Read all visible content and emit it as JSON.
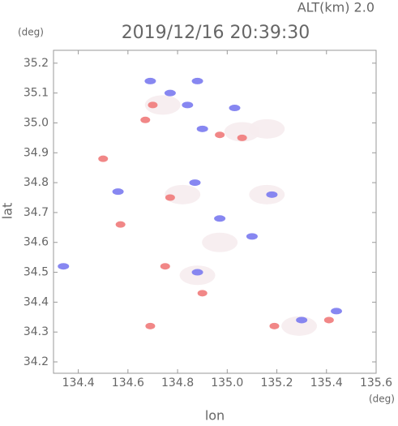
{
  "chart_data": {
    "type": "scatter",
    "title": "2019/12/16 20:39:30",
    "subtitle": "ALT(km) 2.0",
    "x_label": "lon",
    "y_label": "lat",
    "x_unit": "(deg)",
    "y_unit": "(deg)",
    "xlim": [
      134.3,
      135.6
    ],
    "ylim": [
      34.162,
      35.243
    ],
    "xticks": [
      134.4,
      134.6,
      134.8,
      {
        "value": 135,
        "label": "135.0"
      },
      135.2,
      135.4,
      135.6
    ],
    "yticks": [
      34.2,
      34.3,
      34.4,
      34.5,
      34.6,
      34.7,
      34.8,
      34.9,
      {
        "value": 35,
        "label": "35.0"
      },
      35.1,
      35.2
    ],
    "series": [
      {
        "color": "#f6ecee",
        "x": [
          135.29,
          134.82,
          134.97,
          134.88,
          135.06,
          134.74,
          135.16,
          135.16
        ],
        "values": [
          34.32,
          34.76,
          34.6,
          34.49,
          34.97,
          35.06,
          34.76,
          34.98
        ]
      },
      {
        "color": "#f07a7a",
        "x": [
          134.5,
          134.67,
          134.7,
          134.97,
          135.06,
          135.19,
          135.41,
          134.77,
          134.75,
          134.9,
          134.69,
          134.57
        ],
        "values": [
          34.88,
          35.01,
          35.06,
          34.96,
          34.95,
          34.32,
          34.34,
          34.75,
          34.52,
          34.43,
          34.32,
          34.66
        ]
      },
      {
        "color": "#7a7af0",
        "x": [
          134.69,
          134.88,
          134.77,
          134.84,
          135.03,
          134.9,
          135.3,
          135.44,
          134.87,
          134.97,
          135.1,
          134.88,
          135.18,
          134.34,
          134.56
        ],
        "values": [
          35.14,
          35.14,
          35.1,
          35.06,
          35.05,
          34.98,
          34.34,
          34.37,
          34.8,
          34.68,
          34.62,
          34.5,
          34.76,
          34.52,
          34.77
        ]
      }
    ]
  }
}
